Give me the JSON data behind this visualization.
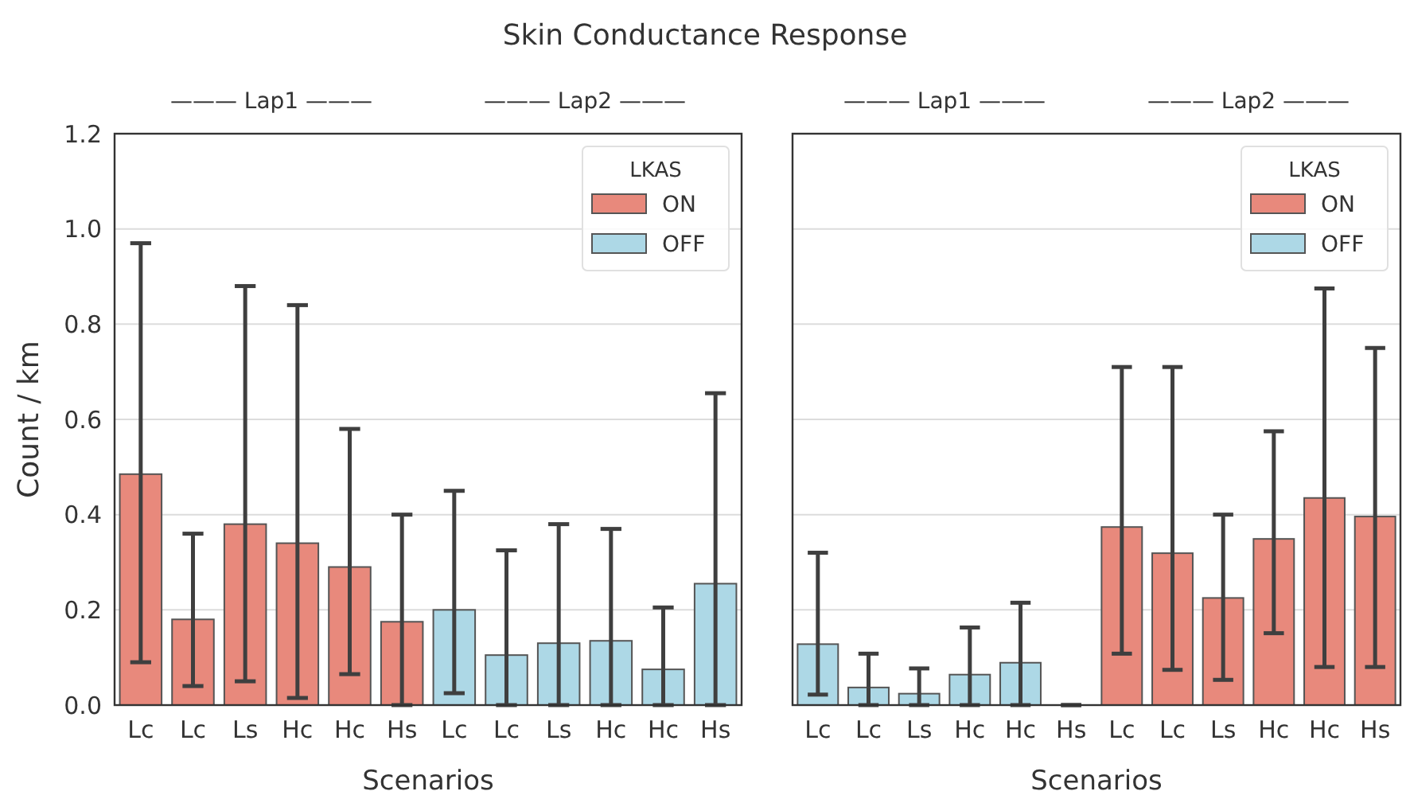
{
  "chart_data": [
    {
      "type": "bar",
      "title": "Skin Conductance Response",
      "xlabel": "Scenarios",
      "ylabel": "Count / km",
      "legend_title": "LKAS",
      "legend": "top right",
      "grid": "y",
      "annotations": [
        "——— Lap1 ———",
        "——— Lap2 ———"
      ],
      "categories": [
        "Lc",
        "Lc",
        "Ls",
        "Hc",
        "Hc",
        "Hs",
        "Lc",
        "Lc",
        "Ls",
        "Hc",
        "Hc",
        "Hs"
      ],
      "ylim": [
        0,
        1.2
      ],
      "yticks": [
        {
          "value": 0,
          "label": "0.0"
        },
        0.2,
        0.4,
        0.6,
        0.8,
        {
          "value": 1,
          "label": "1.0"
        },
        1.2
      ],
      "series": [
        {
          "name": "ON",
          "color": "#e8897c",
          "values": [
            0.485,
            0.18,
            0.38,
            0.34,
            0.29,
            0.175,
            null,
            null,
            null,
            null,
            null,
            null
          ],
          "errors": [
            [
              0.09,
              0.97
            ],
            [
              0.04,
              0.36
            ],
            [
              0.05,
              0.88
            ],
            [
              0.015,
              0.84
            ],
            [
              0.065,
              0.58
            ],
            [
              0.0,
              0.4
            ],
            null,
            null,
            null,
            null,
            null,
            null
          ]
        },
        {
          "name": "OFF",
          "color": "#add8e6",
          "values": [
            null,
            null,
            null,
            null,
            null,
            null,
            0.2,
            0.105,
            0.13,
            0.135,
            0.075,
            0.255
          ],
          "errors": [
            null,
            null,
            null,
            null,
            null,
            null,
            [
              0.025,
              0.45
            ],
            [
              0.0,
              0.325
            ],
            [
              0.0,
              0.38
            ],
            [
              0.0,
              0.37
            ],
            [
              0.0,
              0.205
            ],
            [
              0.0,
              0.655
            ]
          ]
        }
      ]
    },
    {
      "type": "bar",
      "xlabel": "Scenarios",
      "legend_title": "LKAS",
      "legend": "top right",
      "grid": "y",
      "tick_labels": "x",
      "annotations": [
        "——— Lap1 ———",
        "——— Lap2 ———"
      ],
      "categories": [
        "Lc",
        "Lc",
        "Ls",
        "Hc",
        "Hc",
        "Hs",
        "Lc",
        "Lc",
        "Ls",
        "Hc",
        "Hc",
        "Hs"
      ],
      "ylim": [
        0,
        1.2
      ],
      "yticks": [
        0,
        0.2,
        0.4,
        0.6,
        0.8,
        1,
        1.2
      ],
      "series": [
        {
          "name": "ON",
          "color": "#e8897c",
          "values": [
            null,
            null,
            null,
            null,
            null,
            null,
            0.374,
            0.319,
            0.225,
            0.349,
            0.435,
            0.396
          ],
          "errors": [
            null,
            null,
            null,
            null,
            null,
            null,
            [
              0.108,
              0.71
            ],
            [
              0.074,
              0.71
            ],
            [
              0.053,
              0.4
            ],
            [
              0.151,
              0.575
            ],
            [
              0.08,
              0.875
            ],
            [
              0.08,
              0.75
            ]
          ]
        },
        {
          "name": "OFF",
          "color": "#add8e6",
          "values": [
            0.128,
            0.037,
            0.024,
            0.064,
            0.089,
            0.0,
            null,
            null,
            null,
            null,
            null,
            null
          ],
          "errors": [
            [
              0.022,
              0.32
            ],
            [
              0.0,
              0.108
            ],
            [
              0.0,
              0.077
            ],
            [
              0.0,
              0.163
            ],
            [
              0.0,
              0.215
            ],
            [
              0.0,
              0.0
            ],
            null,
            null,
            null,
            null,
            null,
            null
          ]
        }
      ]
    }
  ]
}
